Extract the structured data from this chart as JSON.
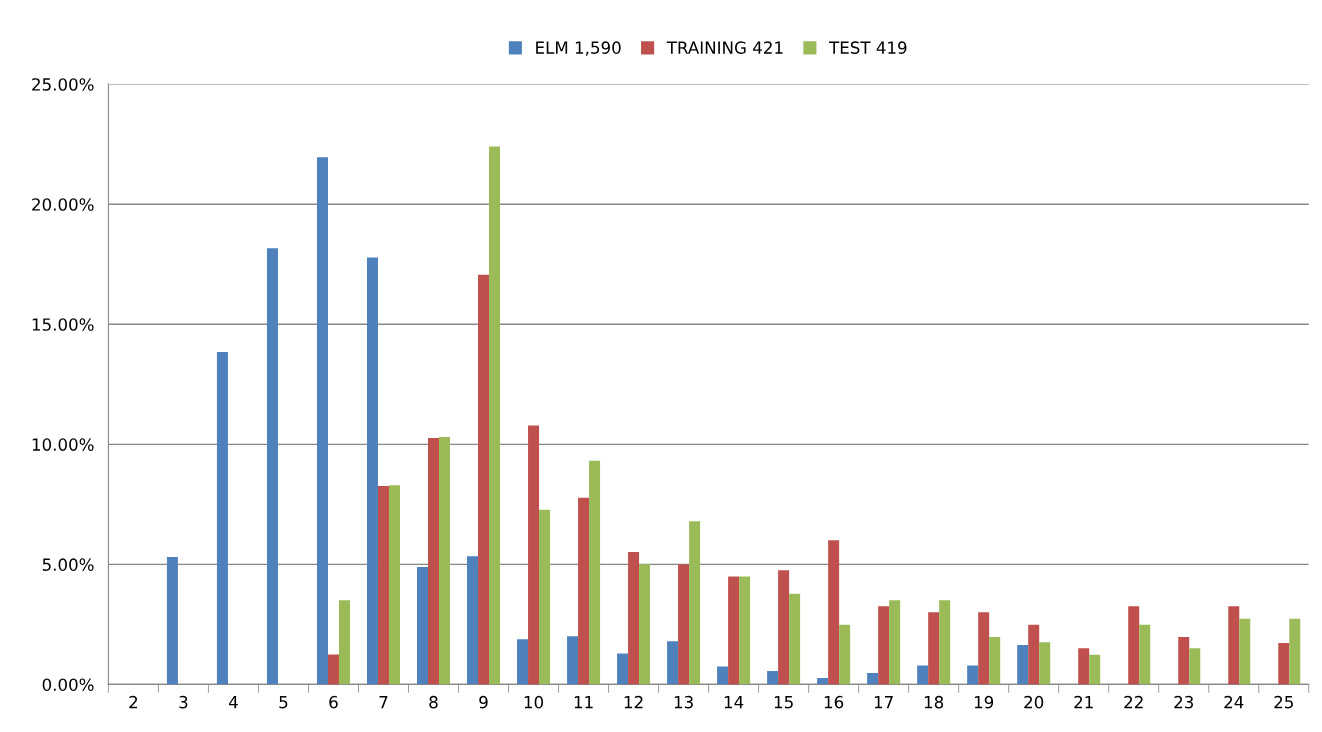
{
  "chart_data": {
    "type": "bar",
    "categories": [
      "2",
      "3",
      "4",
      "5",
      "6",
      "7",
      "8",
      "9",
      "10",
      "11",
      "12",
      "13",
      "14",
      "15",
      "16",
      "17",
      "18",
      "19",
      "20",
      "21",
      "22",
      "23",
      "24",
      "25"
    ],
    "series": [
      {
        "name": "ELM 1,590",
        "color": "#4f81bd",
        "values": [
          0,
          5.31,
          13.85,
          18.17,
          21.96,
          17.78,
          4.89,
          5.34,
          1.88,
          2.01,
          1.29,
          1.8,
          0.75,
          0.56,
          0.27,
          0.48,
          0.79,
          0.79,
          1.64,
          0,
          0,
          0,
          0,
          0
        ]
      },
      {
        "name": "TRAINING 421",
        "color": "#c0504d",
        "values": [
          0,
          0,
          0,
          0,
          1.25,
          8.26,
          10.26,
          17.06,
          10.78,
          7.78,
          5.52,
          5.0,
          4.5,
          4.75,
          6.0,
          3.26,
          3.01,
          3.01,
          2.49,
          1.51,
          3.26,
          1.97,
          3.26,
          1.72
        ]
      },
      {
        "name": "TEST 419",
        "color": "#9bbb59",
        "values": [
          0,
          0,
          0,
          0,
          3.51,
          8.3,
          10.31,
          22.4,
          7.27,
          9.32,
          5.0,
          6.8,
          4.5,
          3.78,
          2.49,
          3.51,
          3.51,
          1.97,
          1.76,
          1.24,
          2.49,
          1.51,
          2.74,
          2.74
        ]
      }
    ],
    "ylim": [
      0,
      25
    ],
    "yticks": [
      {
        "value": 0,
        "label": "0.00%"
      },
      {
        "value": 5,
        "label": "5.00%"
      },
      {
        "value": 10,
        "label": "10.00%"
      },
      {
        "value": 15,
        "label": "15.00%"
      },
      {
        "value": 20,
        "label": "20.00%"
      },
      {
        "value": 25,
        "label": "25.00%"
      }
    ],
    "grid": "y",
    "legend": "top"
  }
}
